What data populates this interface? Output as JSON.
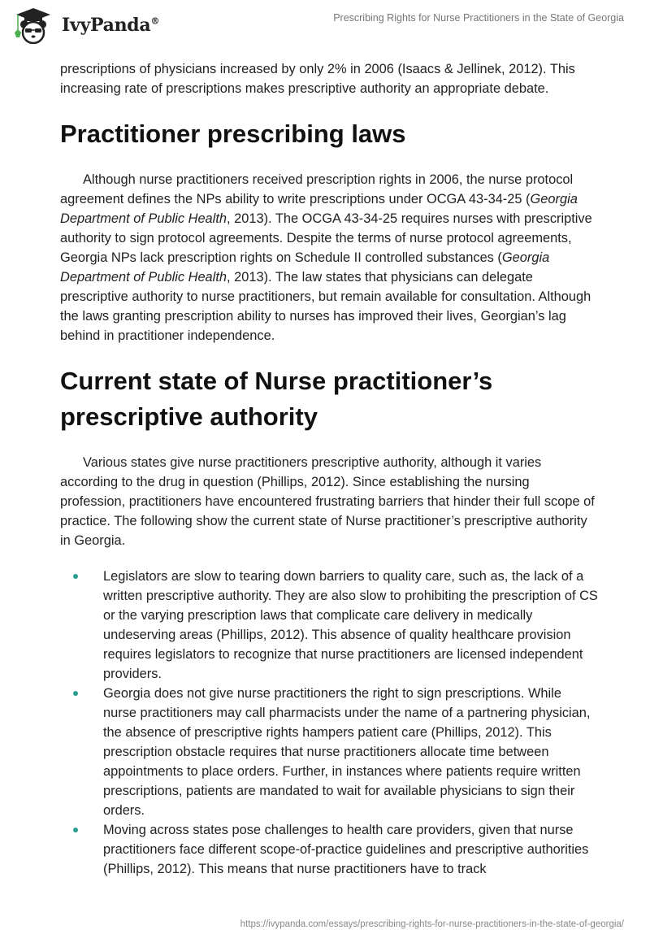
{
  "header": {
    "logo_text": "IvyPanda",
    "logo_mark": "®",
    "title": "Prescribing Rights for Nurse Practitioners in the State of Georgia"
  },
  "colors": {
    "bullet": "#2a9d8f",
    "logo_leaf": "#4caf50"
  },
  "content": {
    "p0": [
      {
        "t": "prescriptions of physicians increased by only 2% in 2006 (Isaacs & Jellinek, 2012). This increasing rate of prescriptions makes prescriptive authority an appropriate debate."
      }
    ],
    "h1": "Practitioner prescribing laws",
    "p1": [
      {
        "t": "Although nurse practitioners received prescription rights in 2006, the nurse protocol agreement defines the NPs ability to write prescriptions under OCGA 43-34-25 ("
      },
      {
        "t": "Georgia Department of Public Health",
        "i": true
      },
      {
        "t": ", 2013). The OCGA 43-34-25 requires nurses with prescriptive authority to sign protocol agreements. Despite the terms of nurse protocol agreements, Georgia NPs lack prescription rights on Schedule II controlled substances ("
      },
      {
        "t": "Georgia Department of Public Health",
        "i": true
      },
      {
        "t": ", 2013). The law states that physicians can delegate prescriptive authority to nurse practitioners, but remain available for consultation. Although the laws granting prescription ability to nurses has improved their lives, Georgian’s lag behind in practitioner independence."
      }
    ],
    "h2": "Current state of Nurse practitioner’s prescriptive authority",
    "p2": [
      {
        "t": "Various states give nurse practitioners prescriptive authority, although it varies according to the drug in question (Phillips, 2012). Since establishing the nursing profession, practitioners have encountered frustrating barriers that hinder their full scope of practice. The following show the current state of Nurse practitioner’s prescriptive authority in Georgia."
      }
    ],
    "bullets": [
      "Legislators are slow to tearing down barriers to quality care, such as, the lack of a written prescriptive authority. They are also slow to prohibiting the prescription of CS or the varying prescription laws that complicate care delivery in medically undeserving areas (Phillips, 2012). This absence of quality healthcare provision requires legislators to recognize that nurse practitioners are licensed independent providers.",
      "Georgia does not give nurse practitioners the right to sign prescriptions. While nurse practitioners may call pharmacists under the name of a partnering physician, the absence of prescriptive rights hampers patient care (Phillips, 2012). This prescription obstacle requires that nurse practitioners allocate time between appointments to place orders. Further, in instances where patients require written prescriptions, patients are mandated to wait for available physicians to sign their orders.",
      "Moving across states pose challenges to health care providers, given that nurse practitioners face different scope-of-practice guidelines and prescriptive authorities (Phillips, 2012). This means that nurse practitioners have to track"
    ]
  },
  "footer": {
    "url": "https://ivypanda.com/essays/prescribing-rights-for-nurse-practitioners-in-the-state-of-georgia/"
  }
}
